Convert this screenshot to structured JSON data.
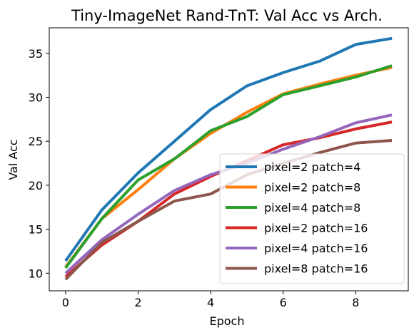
{
  "chart_data": {
    "type": "line",
    "title": "Tiny-ImageNet Rand-TnT: Val Acc vs Arch.",
    "xlabel": "Epoch",
    "ylabel": "Val Acc",
    "xlim": [
      -0.45,
      9.45
    ],
    "ylim": [
      8.0,
      37.9
    ],
    "xticks": [
      0,
      2,
      4,
      6,
      8
    ],
    "yticks": [
      10,
      15,
      20,
      25,
      30,
      35
    ],
    "grid": false,
    "legend_position": "lower-right",
    "x": [
      0,
      1,
      2,
      3,
      4,
      5,
      6,
      7,
      8,
      9
    ],
    "series": [
      {
        "name": "pixel=2 patch=4",
        "color": "#1f77b4",
        "values": [
          11.4,
          17.2,
          21.4,
          25.0,
          28.6,
          31.3,
          32.8,
          34.1,
          36.0,
          36.7
        ]
      },
      {
        "name": "pixel=2 patch=8",
        "color": "#ff7f0e",
        "values": [
          10.7,
          16.2,
          19.5,
          23.0,
          25.9,
          28.3,
          30.4,
          31.5,
          32.5,
          33.4
        ]
      },
      {
        "name": "pixel=4 patch=8",
        "color": "#2ca02c",
        "values": [
          10.6,
          16.2,
          20.6,
          23.0,
          26.2,
          27.8,
          30.3,
          31.3,
          32.3,
          33.6
        ]
      },
      {
        "name": "pixel=2 patch=16",
        "color": "#d62728",
        "values": [
          9.6,
          13.2,
          15.9,
          19.0,
          21.0,
          22.8,
          24.6,
          25.4,
          26.4,
          27.2
        ]
      },
      {
        "name": "pixel=4 patch=16",
        "color": "#9467bd",
        "values": [
          10.0,
          13.8,
          16.7,
          19.4,
          21.2,
          22.5,
          24.1,
          25.5,
          27.1,
          28.0
        ]
      },
      {
        "name": "pixel=8 patch=16",
        "color": "#8c564b",
        "values": [
          9.3,
          13.5,
          15.9,
          18.2,
          19.0,
          21.2,
          22.5,
          23.7,
          24.8,
          25.1
        ]
      }
    ]
  }
}
